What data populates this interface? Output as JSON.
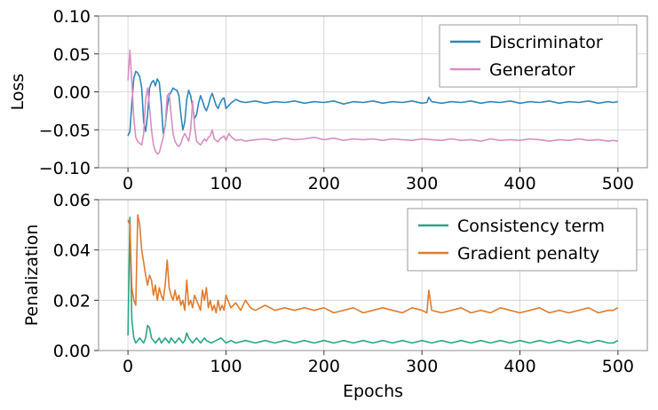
{
  "chart_data": [
    {
      "type": "line",
      "ylabel": "Loss",
      "xlim": [
        -30,
        530
      ],
      "ylim": [
        -0.1,
        0.1
      ],
      "xticks": [
        0,
        100,
        200,
        300,
        400,
        500
      ],
      "yticks": [
        -0.1,
        -0.05,
        0.0,
        0.05,
        0.1
      ],
      "ytick_labels": [
        "−0.10",
        "−0.05",
        "0.00",
        "0.05",
        "0.10"
      ],
      "grid": true,
      "legend": "top-right",
      "series": [
        {
          "name": "Discriminator",
          "color": "#2e86b8",
          "x": [
            0,
            2,
            4,
            6,
            8,
            10,
            12,
            14,
            16,
            18,
            20,
            22,
            24,
            26,
            28,
            30,
            32,
            34,
            36,
            38,
            40,
            42,
            44,
            46,
            48,
            50,
            52,
            54,
            56,
            58,
            60,
            62,
            64,
            66,
            68,
            70,
            72,
            74,
            76,
            78,
            80,
            82,
            84,
            86,
            88,
            90,
            92,
            94,
            96,
            98,
            100,
            105,
            110,
            115,
            120,
            130,
            140,
            150,
            160,
            170,
            180,
            190,
            200,
            210,
            220,
            230,
            240,
            250,
            260,
            270,
            280,
            290,
            300,
            305,
            307,
            310,
            320,
            330,
            340,
            350,
            360,
            370,
            380,
            390,
            400,
            410,
            420,
            430,
            440,
            450,
            460,
            470,
            480,
            490,
            495,
            500
          ],
          "y": [
            -0.058,
            -0.052,
            -0.015,
            0.018,
            0.027,
            0.025,
            0.02,
            0.005,
            -0.04,
            -0.052,
            -0.03,
            0.005,
            0.012,
            0.015,
            0.008,
            0.017,
            0.012,
            -0.015,
            -0.055,
            -0.045,
            -0.02,
            -0.005,
            0.0,
            0.005,
            0.003,
            0.002,
            -0.005,
            -0.03,
            -0.05,
            -0.04,
            -0.01,
            0.002,
            -0.005,
            -0.02,
            -0.035,
            -0.03,
            -0.015,
            -0.005,
            -0.012,
            -0.02,
            -0.025,
            -0.018,
            -0.008,
            -0.002,
            -0.01,
            -0.018,
            -0.022,
            -0.015,
            -0.01,
            -0.008,
            -0.022,
            -0.015,
            -0.01,
            -0.013,
            -0.014,
            -0.012,
            -0.015,
            -0.013,
            -0.014,
            -0.012,
            -0.015,
            -0.013,
            -0.014,
            -0.012,
            -0.016,
            -0.013,
            -0.014,
            -0.012,
            -0.015,
            -0.013,
            -0.014,
            -0.012,
            -0.015,
            -0.014,
            -0.007,
            -0.013,
            -0.015,
            -0.013,
            -0.014,
            -0.012,
            -0.015,
            -0.013,
            -0.014,
            -0.012,
            -0.015,
            -0.013,
            -0.014,
            -0.012,
            -0.015,
            -0.013,
            -0.014,
            -0.012,
            -0.015,
            -0.013,
            -0.014,
            -0.013
          ]
        },
        {
          "name": "Generator",
          "color": "#d68fbf",
          "x": [
            0,
            2,
            4,
            6,
            8,
            10,
            12,
            14,
            16,
            18,
            20,
            22,
            24,
            26,
            28,
            30,
            32,
            34,
            36,
            38,
            40,
            42,
            44,
            46,
            48,
            50,
            52,
            54,
            56,
            58,
            60,
            62,
            64,
            66,
            68,
            70,
            72,
            74,
            76,
            78,
            80,
            82,
            84,
            86,
            88,
            90,
            92,
            94,
            96,
            98,
            100,
            103,
            106,
            110,
            115,
            120,
            130,
            140,
            150,
            160,
            170,
            180,
            190,
            200,
            210,
            220,
            230,
            240,
            250,
            260,
            270,
            280,
            290,
            300,
            310,
            320,
            330,
            340,
            350,
            360,
            370,
            380,
            390,
            400,
            410,
            420,
            430,
            440,
            450,
            460,
            470,
            480,
            490,
            495,
            500
          ],
          "y": [
            0.015,
            0.055,
            0.012,
            -0.035,
            -0.06,
            -0.065,
            -0.068,
            -0.07,
            -0.055,
            -0.01,
            0.005,
            -0.02,
            -0.05,
            -0.07,
            -0.078,
            -0.082,
            -0.08,
            -0.07,
            -0.06,
            -0.045,
            -0.005,
            -0.002,
            -0.03,
            -0.055,
            -0.065,
            -0.07,
            -0.072,
            -0.068,
            -0.06,
            -0.055,
            -0.06,
            -0.065,
            -0.05,
            -0.012,
            -0.045,
            -0.065,
            -0.068,
            -0.07,
            -0.066,
            -0.062,
            -0.065,
            -0.06,
            -0.058,
            -0.05,
            -0.062,
            -0.064,
            -0.066,
            -0.062,
            -0.06,
            -0.058,
            -0.064,
            -0.055,
            -0.06,
            -0.064,
            -0.063,
            -0.065,
            -0.063,
            -0.062,
            -0.064,
            -0.061,
            -0.063,
            -0.062,
            -0.06,
            -0.063,
            -0.061,
            -0.064,
            -0.062,
            -0.063,
            -0.062,
            -0.064,
            -0.062,
            -0.063,
            -0.064,
            -0.062,
            -0.063,
            -0.064,
            -0.062,
            -0.064,
            -0.063,
            -0.065,
            -0.062,
            -0.064,
            -0.063,
            -0.064,
            -0.062,
            -0.063,
            -0.065,
            -0.063,
            -0.064,
            -0.062,
            -0.064,
            -0.063,
            -0.065,
            -0.064,
            -0.065
          ]
        }
      ]
    },
    {
      "type": "line",
      "xlabel": "Epochs",
      "ylabel": "Penalization",
      "xlim": [
        -30,
        530
      ],
      "ylim": [
        0.0,
        0.06
      ],
      "xticks": [
        0,
        100,
        200,
        300,
        400,
        500
      ],
      "yticks": [
        0.0,
        0.02,
        0.04,
        0.06
      ],
      "ytick_labels": [
        "0.00",
        "0.02",
        "0.04",
        "0.06"
      ],
      "grid": true,
      "legend": "top-right",
      "series": [
        {
          "name": "Consistency term",
          "color": "#2aa584",
          "x": [
            0,
            1,
            2,
            3,
            4,
            6,
            8,
            10,
            12,
            14,
            16,
            18,
            20,
            22,
            24,
            26,
            28,
            30,
            32,
            34,
            36,
            38,
            40,
            42,
            44,
            46,
            48,
            50,
            52,
            54,
            56,
            58,
            60,
            62,
            64,
            66,
            68,
            70,
            72,
            74,
            76,
            78,
            80,
            85,
            90,
            95,
            100,
            105,
            110,
            120,
            130,
            140,
            150,
            160,
            170,
            180,
            190,
            200,
            210,
            220,
            230,
            240,
            250,
            260,
            270,
            280,
            290,
            300,
            310,
            320,
            330,
            340,
            350,
            360,
            370,
            380,
            390,
            400,
            410,
            420,
            430,
            440,
            450,
            460,
            470,
            480,
            490,
            495,
            500
          ],
          "y": [
            0.006,
            0.03,
            0.053,
            0.03,
            0.012,
            0.005,
            0.003,
            0.004,
            0.005,
            0.004,
            0.003,
            0.005,
            0.01,
            0.009,
            0.005,
            0.004,
            0.003,
            0.004,
            0.005,
            0.003,
            0.004,
            0.005,
            0.004,
            0.003,
            0.005,
            0.004,
            0.003,
            0.004,
            0.005,
            0.004,
            0.003,
            0.004,
            0.007,
            0.005,
            0.004,
            0.003,
            0.004,
            0.005,
            0.004,
            0.003,
            0.004,
            0.005,
            0.004,
            0.003,
            0.004,
            0.005,
            0.003,
            0.004,
            0.003,
            0.004,
            0.003,
            0.004,
            0.003,
            0.004,
            0.003,
            0.004,
            0.003,
            0.004,
            0.003,
            0.004,
            0.003,
            0.004,
            0.003,
            0.004,
            0.003,
            0.004,
            0.003,
            0.004,
            0.003,
            0.004,
            0.003,
            0.004,
            0.003,
            0.004,
            0.003,
            0.004,
            0.003,
            0.004,
            0.003,
            0.004,
            0.003,
            0.004,
            0.003,
            0.004,
            0.003,
            0.004,
            0.003,
            0.003,
            0.004
          ]
        },
        {
          "name": "Gradient penalty",
          "color": "#e07b2d",
          "x": [
            0,
            2,
            4,
            6,
            8,
            10,
            12,
            14,
            16,
            18,
            20,
            22,
            24,
            26,
            28,
            30,
            32,
            34,
            36,
            38,
            40,
            42,
            44,
            46,
            48,
            50,
            52,
            54,
            56,
            58,
            60,
            62,
            64,
            66,
            68,
            70,
            72,
            74,
            76,
            78,
            80,
            82,
            84,
            86,
            88,
            90,
            92,
            94,
            96,
            98,
            100,
            105,
            110,
            115,
            120,
            125,
            130,
            140,
            150,
            160,
            170,
            180,
            190,
            200,
            210,
            220,
            230,
            240,
            250,
            260,
            270,
            280,
            290,
            300,
            305,
            307,
            310,
            320,
            330,
            340,
            350,
            360,
            370,
            380,
            390,
            400,
            410,
            420,
            430,
            440,
            450,
            460,
            470,
            480,
            490,
            495,
            500
          ],
          "y": [
            0.052,
            0.05,
            0.025,
            0.02,
            0.018,
            0.054,
            0.05,
            0.04,
            0.035,
            0.03,
            0.026,
            0.03,
            0.028,
            0.022,
            0.026,
            0.02,
            0.025,
            0.022,
            0.02,
            0.026,
            0.036,
            0.025,
            0.022,
            0.02,
            0.024,
            0.02,
            0.022,
            0.018,
            0.02,
            0.016,
            0.028,
            0.018,
            0.02,
            0.017,
            0.022,
            0.02,
            0.018,
            0.016,
            0.024,
            0.02,
            0.025,
            0.017,
            0.02,
            0.016,
            0.018,
            0.015,
            0.02,
            0.016,
            0.018,
            0.016,
            0.022,
            0.017,
            0.019,
            0.016,
            0.02,
            0.017,
            0.016,
            0.018,
            0.016,
            0.017,
            0.016,
            0.017,
            0.016,
            0.017,
            0.015,
            0.016,
            0.017,
            0.015,
            0.016,
            0.017,
            0.016,
            0.015,
            0.017,
            0.016,
            0.015,
            0.024,
            0.016,
            0.015,
            0.016,
            0.017,
            0.015,
            0.016,
            0.015,
            0.017,
            0.016,
            0.015,
            0.016,
            0.017,
            0.015,
            0.016,
            0.015,
            0.016,
            0.017,
            0.015,
            0.016,
            0.016,
            0.017
          ]
        }
      ]
    }
  ]
}
